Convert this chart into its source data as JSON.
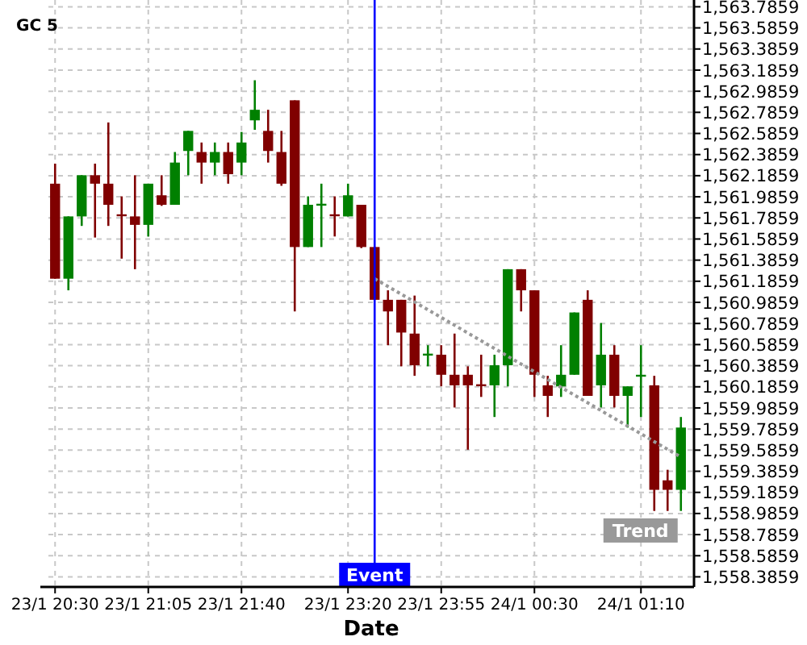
{
  "chart_data": {
    "type": "candlestick",
    "title": "GC 5",
    "xlabel": "Date",
    "categories": [
      "23/1 20:30",
      null,
      null,
      null,
      null,
      null,
      null,
      "23/1 21:05",
      null,
      null,
      null,
      null,
      null,
      null,
      "23/1 21:40",
      null,
      null,
      null,
      null,
      null,
      null,
      null,
      "23/1 23:20",
      null,
      null,
      null,
      null,
      null,
      null,
      "23/1 23:55",
      null,
      null,
      null,
      null,
      null,
      null,
      "24/1 00:30",
      null,
      null,
      null,
      null,
      null,
      null,
      null,
      "24/1 01:10",
      null,
      null,
      null
    ],
    "ohlc": [
      [
        1562.11,
        1562.3,
        1561.21,
        1561.21
      ],
      [
        1561.21,
        1561.8,
        1561.1,
        1561.8
      ],
      [
        1561.8,
        1562.19,
        1561.71,
        1562.19
      ],
      [
        1562.19,
        1562.3,
        1561.6,
        1562.11
      ],
      [
        1562.11,
        1562.69,
        1561.71,
        1561.91
      ],
      [
        1561.82,
        1561.99,
        1561.4,
        1561.81
      ],
      [
        1561.8,
        1562.19,
        1561.3,
        1561.72
      ],
      [
        1561.72,
        1562.11,
        1561.61,
        1562.11
      ],
      [
        1562.0,
        1562.19,
        1561.9,
        1561.91
      ],
      [
        1561.91,
        1562.41,
        1561.91,
        1562.31
      ],
      [
        1562.42,
        1562.61,
        1562.19,
        1562.61
      ],
      [
        1562.41,
        1562.5,
        1562.11,
        1562.31
      ],
      [
        1562.31,
        1562.5,
        1562.19,
        1562.41
      ],
      [
        1562.41,
        1562.5,
        1562.11,
        1562.2
      ],
      [
        1562.31,
        1562.6,
        1562.19,
        1562.5
      ],
      [
        1562.71,
        1563.09,
        1562.62,
        1562.81
      ],
      [
        1562.61,
        1562.81,
        1562.31,
        1562.42
      ],
      [
        1562.41,
        1562.61,
        1562.09,
        1562.11
      ],
      [
        1562.9,
        1562.9,
        1560.9,
        1561.51
      ],
      [
        1561.51,
        1561.99,
        1561.51,
        1561.91
      ],
      [
        1561.91,
        1562.11,
        1561.51,
        1561.92
      ],
      [
        1561.82,
        1561.99,
        1561.61,
        1561.81
      ],
      [
        1561.8,
        1562.11,
        1561.8,
        1562.0
      ],
      [
        1561.91,
        1561.91,
        1561.5,
        1561.51
      ],
      [
        1561.51,
        1561.51,
        1561.01,
        1561.01
      ],
      [
        1561.01,
        1561.1,
        1560.58,
        1560.9
      ],
      [
        1561.01,
        1561.01,
        1560.38,
        1560.7
      ],
      [
        1560.69,
        1561.05,
        1560.29,
        1560.39
      ],
      [
        1560.49,
        1560.58,
        1560.38,
        1560.5
      ],
      [
        1560.49,
        1560.58,
        1560.19,
        1560.3
      ],
      [
        1560.3,
        1560.69,
        1559.99,
        1560.2
      ],
      [
        1560.3,
        1560.38,
        1559.59,
        1560.2
      ],
      [
        1560.21,
        1560.49,
        1560.09,
        1560.2
      ],
      [
        1560.2,
        1560.49,
        1559.9,
        1560.39
      ],
      [
        1560.39,
        1561.3,
        1560.19,
        1561.3
      ],
      [
        1561.3,
        1561.3,
        1560.9,
        1561.1
      ],
      [
        1561.1,
        1561.1,
        1560.09,
        1560.3
      ],
      [
        1560.2,
        1560.29,
        1559.9,
        1560.1
      ],
      [
        1560.19,
        1560.58,
        1560.09,
        1560.3
      ],
      [
        1560.3,
        1560.89,
        1560.3,
        1560.89
      ],
      [
        1561.01,
        1561.1,
        1560.1,
        1560.1
      ],
      [
        1560.2,
        1560.79,
        1559.99,
        1560.49
      ],
      [
        1560.49,
        1560.58,
        1559.99,
        1560.1
      ],
      [
        1560.1,
        1560.19,
        1559.8,
        1560.19
      ],
      [
        1560.29,
        1560.58,
        1559.9,
        1560.3
      ],
      [
        1560.2,
        1560.29,
        1559.01,
        1559.21
      ],
      [
        1559.3,
        1559.4,
        1559.01,
        1559.21
      ],
      [
        1559.21,
        1559.9,
        1559.01,
        1559.8
      ]
    ],
    "colors": [
      "#800000",
      "#008000",
      "#008000",
      "#800000",
      "#800000",
      "#800000",
      "#800000",
      "#008000",
      "#800000",
      "#008000",
      "#008000",
      "#800000",
      "#008000",
      "#800000",
      "#008000",
      "#008000",
      "#800000",
      "#800000",
      "#800000",
      "#008000",
      "#008000",
      "#800000",
      "#008000",
      "#800000",
      "#800000",
      "#800000",
      "#800000",
      "#800000",
      "#008000",
      "#800000",
      "#800000",
      "#800000",
      "#800000",
      "#008000",
      "#008000",
      "#800000",
      "#800000",
      "#800000",
      "#008000",
      "#008000",
      "#800000",
      "#008000",
      "#800000",
      "#008000",
      "#008000",
      "#800000",
      "#800000",
      "#008000"
    ],
    "series": [
      {
        "type": "line",
        "name": "Trend",
        "values": [
          null,
          null,
          null,
          null,
          null,
          null,
          null,
          null,
          null,
          null,
          null,
          null,
          null,
          null,
          null,
          null,
          null,
          null,
          null,
          null,
          null,
          null,
          null,
          null,
          1561.21,
          null,
          null,
          null,
          null,
          null,
          null,
          null,
          null,
          null,
          null,
          null,
          null,
          null,
          null,
          null,
          null,
          null,
          null,
          null,
          null,
          null,
          null,
          1559.52
        ],
        "color": "#999999",
        "line_style": "dotted"
      }
    ],
    "annotations": [
      "Event"
    ],
    "ylim": [
      1558.29,
      1563.85
    ],
    "yticks": [
      {
        "value": 1558.3859,
        "label": "1,558.3859"
      },
      {
        "value": 1558.5859,
        "label": "1,558.5859"
      },
      {
        "value": 1558.7859,
        "label": "1,558.7859"
      },
      {
        "value": 1558.9859,
        "label": "1,558.9859"
      },
      {
        "value": 1559.1859,
        "label": "1,559.1859"
      },
      {
        "value": 1559.3859,
        "label": "1,559.3859"
      },
      {
        "value": 1559.5859,
        "label": "1,559.5859"
      },
      {
        "value": 1559.7859,
        "label": "1,559.7859"
      },
      {
        "value": 1559.9859,
        "label": "1,559.9859"
      },
      {
        "value": 1560.1859,
        "label": "1,560.1859"
      },
      {
        "value": 1560.3859,
        "label": "1,560.3859"
      },
      {
        "value": 1560.5859,
        "label": "1,560.5859"
      },
      {
        "value": 1560.7859,
        "label": "1,560.7859"
      },
      {
        "value": 1560.9859,
        "label": "1,560.9859"
      },
      {
        "value": 1561.1859,
        "label": "1,561.1859"
      },
      {
        "value": 1561.3859,
        "label": "1,561.3859"
      },
      {
        "value": 1561.5859,
        "label": "1,561.5859"
      },
      {
        "value": 1561.7859,
        "label": "1,561.7859"
      },
      {
        "value": 1561.9859,
        "label": "1,561.9859"
      },
      {
        "value": 1562.1859,
        "label": "1,562.1859"
      },
      {
        "value": 1562.3859,
        "label": "1,562.3859"
      },
      {
        "value": 1562.5859,
        "label": "1,562.5859"
      },
      {
        "value": 1562.7859,
        "label": "1,562.7859"
      },
      {
        "value": 1562.9859,
        "label": "1,562.9859"
      },
      {
        "value": 1563.1859,
        "label": "1,563.1859"
      },
      {
        "value": 1563.3859,
        "label": "1,563.3859"
      },
      {
        "value": 1563.5859,
        "label": "1,563.5859"
      },
      {
        "value": 1563.7859,
        "label": "1,563.7859"
      }
    ],
    "grid": true
  }
}
